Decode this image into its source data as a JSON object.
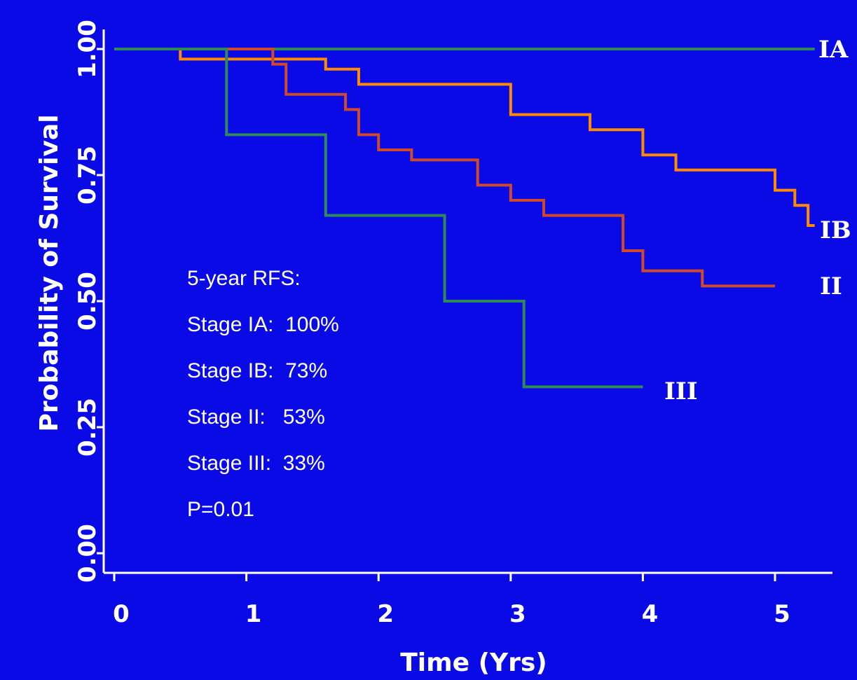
{
  "chart_data": {
    "type": "line",
    "step": true,
    "xlabel": "Time (Yrs)",
    "ylabel": "Probability of Survival",
    "xlim": [
      0,
      5.45
    ],
    "ylim": [
      0,
      1.05
    ],
    "xticks": [
      "0",
      "1",
      "2",
      "3",
      "4",
      "5"
    ],
    "yticks": [
      "0.00",
      "0.25",
      "0.50",
      "0.75",
      "1.00"
    ],
    "grid": false,
    "series": [
      {
        "name": "IA",
        "color": "#2e8b57",
        "x": [
          0,
          5.3
        ],
        "y": [
          1.0,
          1.0
        ]
      },
      {
        "name": "IB",
        "color": "#ff8c00",
        "x": [
          0,
          0.5,
          1.6,
          1.85,
          3.0,
          3.6,
          4.0,
          4.25,
          5.0,
          5.15,
          5.25,
          5.3
        ],
        "y": [
          1.0,
          0.98,
          0.96,
          0.93,
          0.87,
          0.84,
          0.79,
          0.76,
          0.72,
          0.69,
          0.65,
          0.65
        ]
      },
      {
        "name": "II",
        "color": "#cd4a2a",
        "x": [
          0,
          1.2,
          1.3,
          1.75,
          1.85,
          2.0,
          2.25,
          2.75,
          3.0,
          3.25,
          3.85,
          4.0,
          4.45,
          5.0
        ],
        "y": [
          1.0,
          0.97,
          0.91,
          0.88,
          0.83,
          0.8,
          0.78,
          0.73,
          0.7,
          0.67,
          0.6,
          0.56,
          0.53,
          0.53
        ]
      },
      {
        "name": "III",
        "color": "#2e8b57",
        "x": [
          0,
          0.85,
          1.6,
          2.5,
          3.1,
          4.0
        ],
        "y": [
          1.0,
          0.83,
          0.67,
          0.5,
          0.33,
          0.33
        ]
      }
    ],
    "annotation": [
      "5-year RFS:",
      "Stage IA:  100%",
      "Stage IB:  73%",
      "Stage II:   53%",
      "Stage III:  33%",
      "P=0.01"
    ]
  }
}
